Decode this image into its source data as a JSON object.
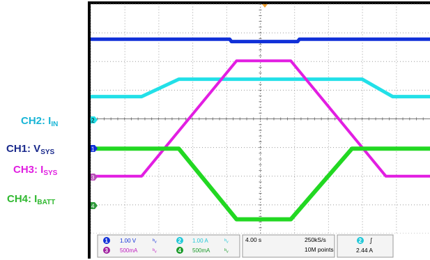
{
  "labels": [
    {
      "key": "ch2",
      "main": "CH2: I",
      "sub": "IN",
      "color": "#19b5d6"
    },
    {
      "key": "ch1",
      "main": "CH1: V",
      "sub": "SYS",
      "color": "#1a2a8c"
    },
    {
      "key": "ch3",
      "main": "CH3: I",
      "sub": "SYS",
      "color": "#e01ee0"
    },
    {
      "key": "ch4",
      "main": "CH4: I",
      "sub": "BATT",
      "color": "#2fb82f"
    }
  ],
  "scope": {
    "colors": {
      "ch1": "#1030d8",
      "ch2": "#22e0e8",
      "ch3": "#e21ee2",
      "ch4": "#22d822",
      "frame": "#000000",
      "grid_bg": "#ffffff",
      "trigger": "#f0a030"
    },
    "status": {
      "ch1_num": "1",
      "ch1_scale": "1.00 V",
      "ch2_num": "2",
      "ch2_scale": "1.00 A",
      "ch3_num": "3",
      "ch3_scale": "500mA",
      "ch4_num": "4",
      "ch4_scale": "500mA",
      "timebase": "4.00 s",
      "sample_rate": "250kS/s",
      "record_length": "10M points",
      "trig_source": "2",
      "trig_slope": "∫",
      "trig_level": "2.44 A"
    },
    "markers": {
      "ch1": "1",
      "ch2": "2",
      "ch3": "3",
      "ch4": "4"
    }
  },
  "chart_data": {
    "type": "line",
    "title": "",
    "xlabel": "",
    "ylabel": "",
    "x_unit": "s",
    "timebase_per_div": 4.0,
    "x": [
      -20,
      -16,
      -12,
      -8,
      -4,
      0,
      4,
      8,
      12,
      16,
      20
    ],
    "xlim": [
      -20,
      20
    ],
    "series": [
      {
        "name": "CH1: VSYS",
        "y": [
          1.45,
          1.45,
          1.45,
          1.45,
          1.45,
          1.4,
          1.4,
          1.45,
          1.45,
          1.45,
          1.45
        ]
      },
      {
        "name": "CH2: IIN",
        "y": [
          1.25,
          1.25,
          1.3,
          1.6,
          1.65,
          1.65,
          1.65,
          1.65,
          1.55,
          1.25,
          1.25
        ]
      },
      {
        "name": "CH3: ISYS",
        "y": [
          -0.15,
          -0.15,
          -0.15,
          1.6,
          3.15,
          3.15,
          3.15,
          1.5,
          -0.15,
          -0.15,
          -0.15
        ]
      },
      {
        "name": "CH4: IBATT",
        "y": [
          1.5,
          1.5,
          1.5,
          1.2,
          -0.1,
          -0.1,
          -0.1,
          1.5,
          1.5,
          1.5,
          1.5
        ]
      }
    ]
  }
}
